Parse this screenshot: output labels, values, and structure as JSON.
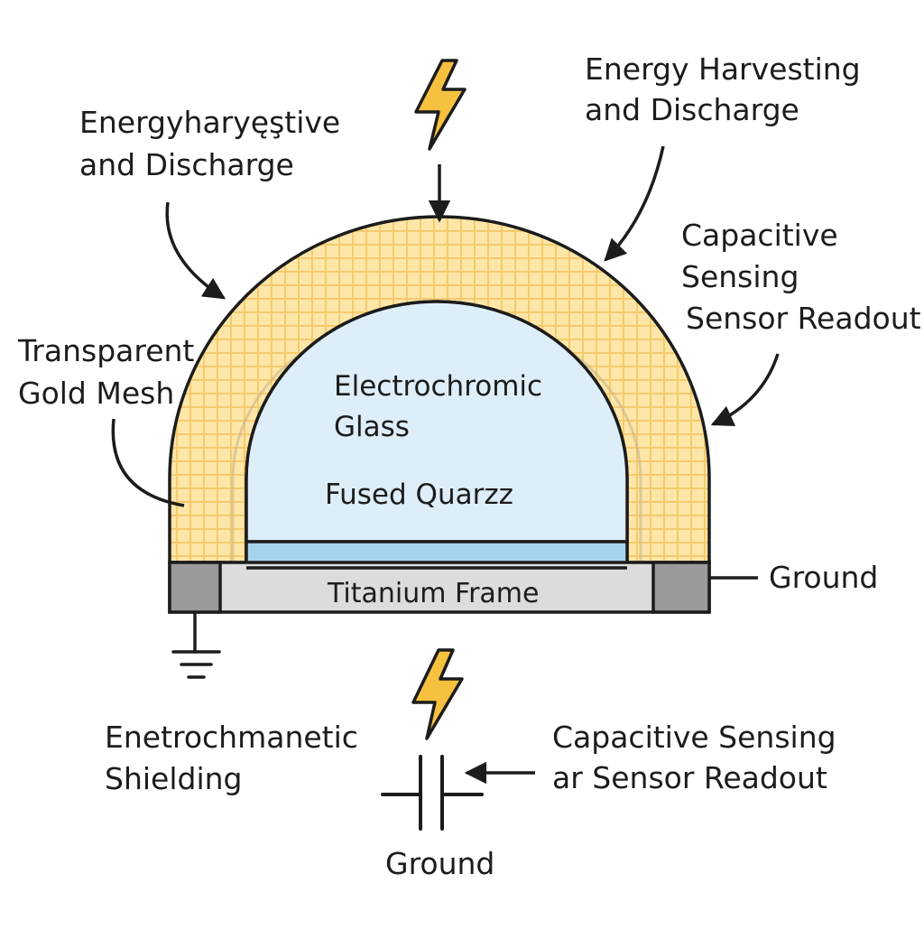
{
  "colors": {
    "mesh_fill": "#fde6a8",
    "mesh_grid": "#f5c96a",
    "glass_fill": "#ddeef8",
    "glass_base": "#a8d4ee",
    "frame_fill": "#dcdcdc",
    "frame_block": "#9a9a9a",
    "bolt": "#f5c13e",
    "ink": "#1c1c1c"
  },
  "icons": {
    "top_bolt": "lightning-bolt-icon",
    "bottom_bolt": "lightning-bolt-icon",
    "ground": "ground-symbol-icon",
    "capacitor": "capacitor-symbol-icon"
  },
  "labels": {
    "top_left": [
      "Energyharyęştive",
      "and Discharge"
    ],
    "top_right": [
      "Energy Harvesting",
      "and Discharge"
    ],
    "right_middle": [
      "Capacitive",
      "Sensing",
      "Sensor Readout"
    ],
    "left_middle": [
      "Transparent",
      "Gold Mesh"
    ],
    "ground_right": "Ground",
    "bottom_left": [
      "Enetrochmanetic",
      "Shielding"
    ],
    "bottom_right": [
      "Capacitive Sensing",
      "ar Sensor Readout"
    ],
    "ground_bottom": "Ground"
  },
  "inner": {
    "electrochromic": [
      "Electrochromic",
      "Glass"
    ],
    "fused": "Fused Quarzz",
    "frame": "Titanium Frame"
  }
}
